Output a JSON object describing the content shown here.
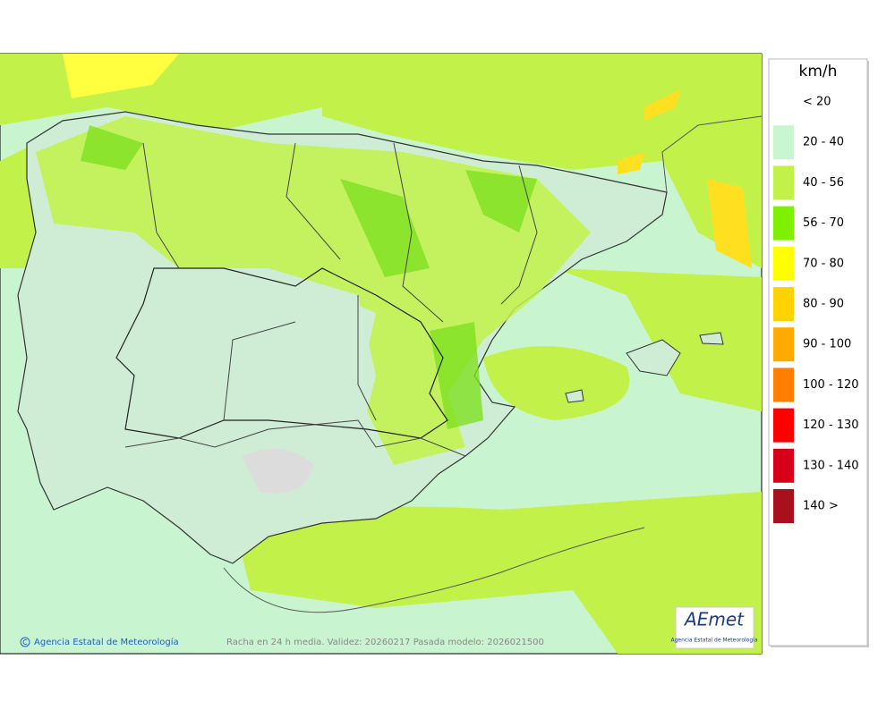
{
  "legend": {
    "title": "km/h",
    "items": [
      {
        "label": "< 20",
        "color": "#ffffff"
      },
      {
        "label": "20 - 40",
        "color": "#c8f7cf"
      },
      {
        "label": "40 - 56",
        "color": "#c2f24a"
      },
      {
        "label": "56 - 70",
        "color": "#7ef000"
      },
      {
        "label": "70 - 80",
        "color": "#ffff00"
      },
      {
        "label": "80 - 90",
        "color": "#ffd200"
      },
      {
        "label": "90 - 100",
        "color": "#ffaa00"
      },
      {
        "label": "100 - 120",
        "color": "#ff8000"
      },
      {
        "label": "120 - 130",
        "color": "#ff0000"
      },
      {
        "label": "130 - 140",
        "color": "#d7001a"
      },
      {
        "label": "140 >",
        "color": "#a8101e"
      }
    ]
  },
  "footer": {
    "credit": "Agencia Estatal de Meteorología",
    "caption": "Racha en 24 h media. Validez: 20260217 Pasada modelo: 2026021500"
  },
  "logo": {
    "name": "AEmet",
    "subtitle": "Agencia Estatal de Meteorología"
  }
}
